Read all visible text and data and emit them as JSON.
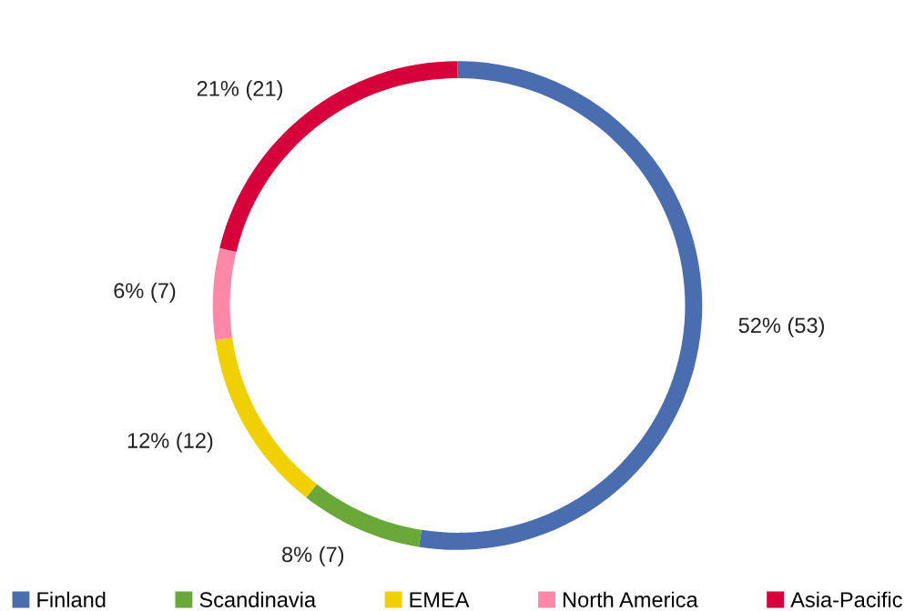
{
  "chart_data": {
    "type": "donut",
    "categories": [
      "Finland",
      "Scandinavia",
      "EMEA",
      "North America",
      "Asia-Pacific"
    ],
    "values": [
      52,
      8,
      12,
      6,
      21
    ],
    "value_labels": [
      "52% (53)",
      "8% (7)",
      "12% (12)",
      "6% (7)",
      "21% (21)"
    ],
    "colors": [
      "#4a6db0",
      "#6aa83a",
      "#f0d000",
      "#ff88a8",
      "#d6003a"
    ],
    "legend": "bottom"
  }
}
